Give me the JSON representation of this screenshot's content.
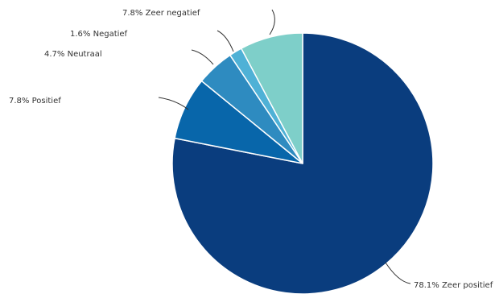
{
  "chart_data": {
    "type": "pie",
    "title": "",
    "start_angle_deg": 0,
    "direction": "clockwise",
    "slices": [
      {
        "label": "Zeer positief",
        "value": 78.1,
        "display": "78.1% Zeer positief",
        "color": "#0a3d7e"
      },
      {
        "label": "Positief",
        "value": 7.8,
        "display": "7.8% Positief",
        "color": "#0866aa"
      },
      {
        "label": "Neutraal",
        "value": 4.7,
        "display": "4.7% Neutraal",
        "color": "#2e8bc0"
      },
      {
        "label": "Negatief",
        "value": 1.6,
        "display": "1.6% Negatief",
        "color": "#4fb1d6"
      },
      {
        "label": "Zeer negatief",
        "value": 7.8,
        "display": "7.8% Zeer negatief",
        "color": "#7ecfc9"
      }
    ]
  }
}
